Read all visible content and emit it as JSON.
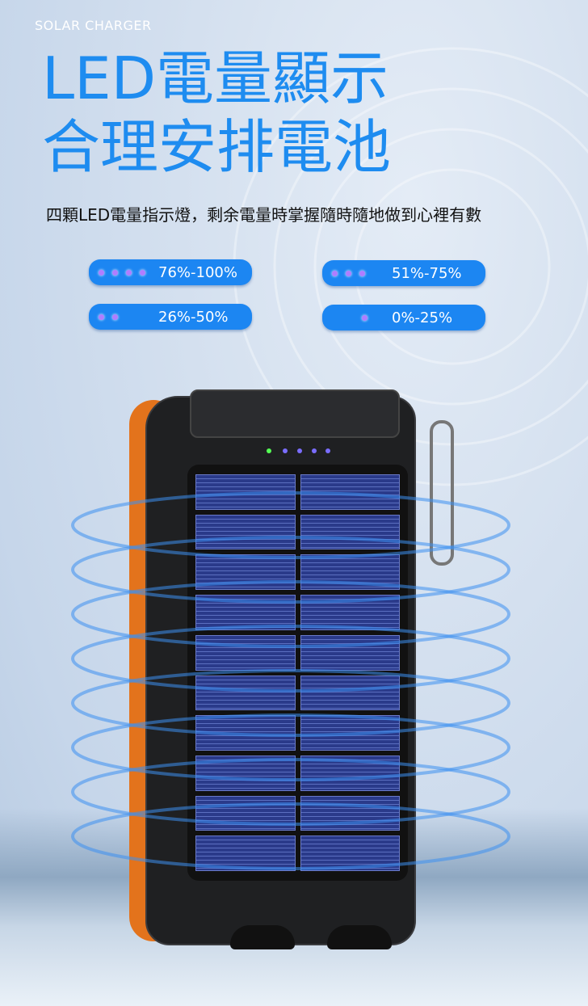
{
  "brand_label": "SOLAR CHARGER",
  "title_line1": "LED電量顯示",
  "title_line2": "合理安排電池",
  "subtitle": "四顆LED電量指示燈，剩余電量時掌握隨時隨地做到心裡有數",
  "accent_color": "#1e8cf0",
  "badges": [
    {
      "dots": 4,
      "label": "76%-100%"
    },
    {
      "dots": 3,
      "label": "51%-75%"
    },
    {
      "dots": 2,
      "label": "26%-50%"
    },
    {
      "dots": 1,
      "label": "0%-25%"
    }
  ]
}
